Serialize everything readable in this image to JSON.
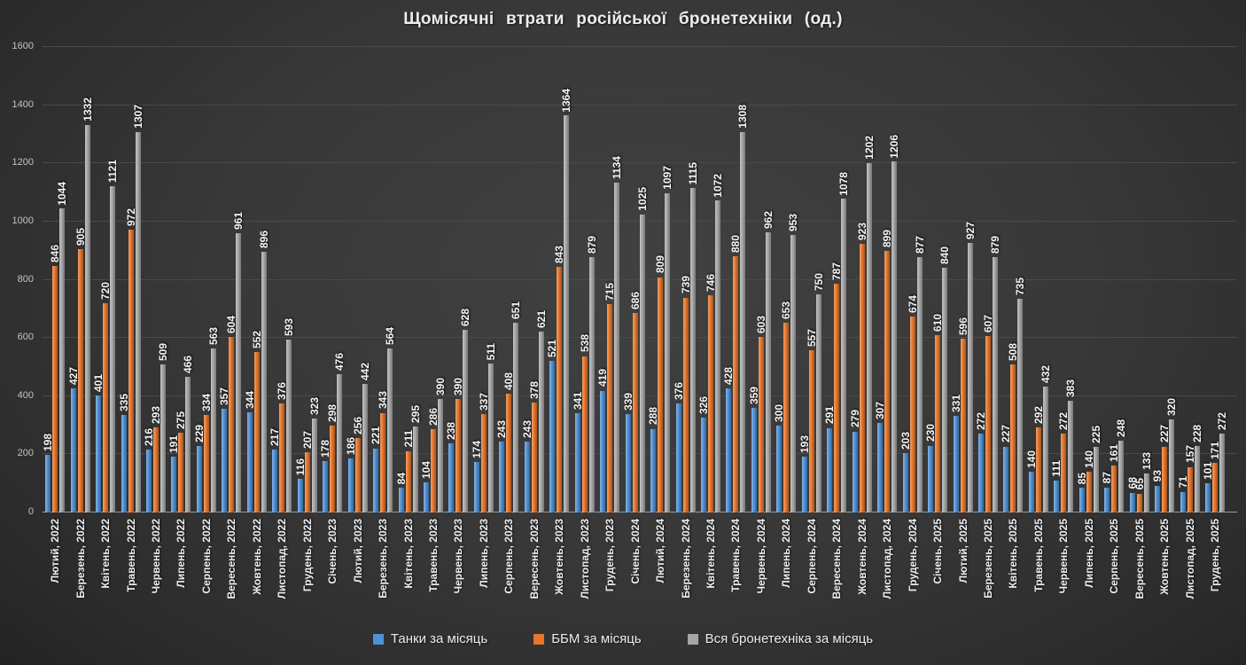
{
  "title": "Щомісячні втрати російської бронетехніки (од.)",
  "colors": {
    "tanks_blue": "#4F91D6",
    "bbm_orange": "#E8762B",
    "all_gray": "#A6A6A6",
    "background": "#383838",
    "gridline": "#4a4a4a",
    "axis_line": "#9a9a9a",
    "label_text": "#f4f4f4"
  },
  "legend": {
    "items": [
      {
        "label": "Танки за місяць",
        "color": "#4F91D6"
      },
      {
        "label": "ББМ за місяць",
        "color": "#E8762B"
      },
      {
        "label": "Вся бронетехніка за місяць",
        "color": "#A6A6A6"
      }
    ]
  },
  "chart_data": {
    "type": "bar",
    "title": "Щомісячні втрати російської бронетехніки (од.)",
    "xlabel": "",
    "ylabel": "",
    "ylim": [
      0,
      1600
    ],
    "y_ticks": [
      0,
      200,
      400,
      600,
      800,
      1000,
      1200,
      1400,
      1600
    ],
    "grid": true,
    "legend_position": "bottom",
    "bar_labels": true,
    "bar_label_rotation": -90,
    "x_label_rotation": -90,
    "categories": [
      "Лютий, 2022",
      "Березень, 2022",
      "Квітень, 2022",
      "Травень, 2022",
      "Червень, 2022",
      "Липень, 2022",
      "Серпень, 2022",
      "Вересень, 2022",
      "Жовтень, 2022",
      "Листопад, 2022",
      "Грудень, 2022",
      "Січень, 2023",
      "Лютий, 2023",
      "Березень, 2023",
      "Квітень, 2023",
      "Травень, 2023",
      "Червень, 2023",
      "Липень, 2023",
      "Серпень, 2023",
      "Вересень, 2023",
      "Жовтень, 2023",
      "Листопад, 2023",
      "Грудень, 2023",
      "Січень, 2024",
      "Лютий, 2024",
      "Березень, 2024",
      "Квітень, 2024",
      "Травень, 2024",
      "Червень, 2024",
      "Липень, 2024",
      "Серпень, 2024",
      "Вересень, 2024",
      "Жовтень, 2024",
      "Листопад, 2024",
      "Грудень, 2024",
      "Січень, 2025",
      "Лютий, 2025",
      "Березень, 2025",
      "Квітень, 2025",
      "Травень, 2025",
      "Червень, 2025",
      "Липень, 2025",
      "Серпень, 2025",
      "Вересень, 2025",
      "Жовтень, 2025",
      "Листопад, 2025",
      "Грудень, 2025"
    ],
    "series": [
      {
        "name": "Танки за місяць",
        "key": "tanks",
        "color": "#4F91D6",
        "values": [
          198,
          427,
          401,
          335,
          216,
          191,
          229,
          357,
          344,
          217,
          116,
          178,
          186,
          221,
          84,
          104,
          238,
          174,
          243,
          243,
          521,
          341,
          419,
          339,
          288,
          376,
          326,
          428,
          359,
          300,
          193,
          291,
          279,
          307,
          203,
          230,
          331,
          272,
          227,
          140,
          111,
          85,
          87,
          68,
          93,
          71,
          101
        ]
      },
      {
        "name": "ББМ за місяць",
        "key": "bbm",
        "color": "#E8762B",
        "values": [
          846,
          905,
          720,
          972,
          293,
          275,
          334,
          604,
          552,
          376,
          207,
          298,
          256,
          343,
          211,
          286,
          390,
          337,
          408,
          378,
          843,
          538,
          715,
          686,
          809,
          739,
          746,
          880,
          603,
          653,
          557,
          787,
          923,
          899,
          674,
          610,
          596,
          607,
          508,
          292,
          272,
          140,
          161,
          65,
          227,
          157,
          171
        ]
      },
      {
        "name": "Вся бронетехніка за місяць",
        "key": "all-armor",
        "color": "#A6A6A6",
        "values": [
          1044,
          1332,
          1121,
          1307,
          509,
          466,
          563,
          961,
          896,
          593,
          323,
          476,
          442,
          564,
          295,
          390,
          628,
          511,
          651,
          621,
          1364,
          879,
          1134,
          1025,
          1097,
          1115,
          1072,
          1308,
          962,
          953,
          750,
          1078,
          1202,
          1206,
          877,
          840,
          927,
          879,
          735,
          432,
          383,
          225,
          248,
          133,
          320,
          228,
          272
        ]
      }
    ]
  }
}
